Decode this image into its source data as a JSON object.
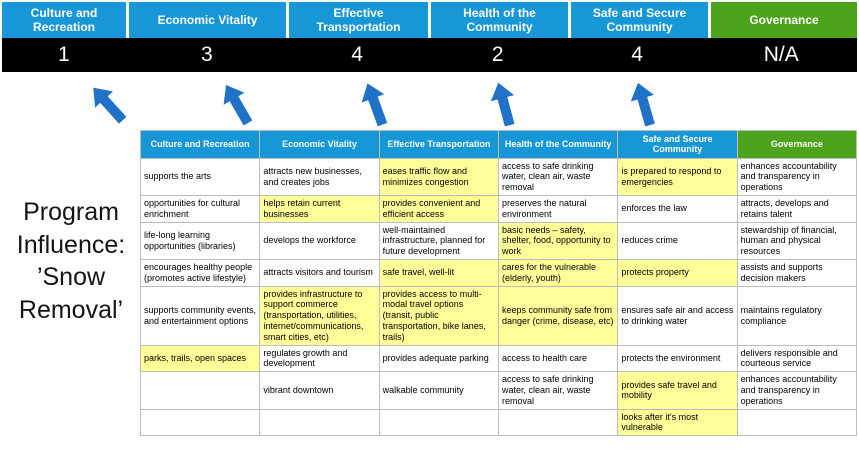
{
  "program": {
    "title": "Program Influence: ’Snow Removal’"
  },
  "columns": [
    {
      "label": "Culture and Recreation",
      "score": "1"
    },
    {
      "label": "Economic Vitality",
      "score": "3"
    },
    {
      "label": "Effective Transportation",
      "score": "4"
    },
    {
      "label": "Health of the Community",
      "score": "2"
    },
    {
      "label": "Safe and Secure Community",
      "score": "4"
    },
    {
      "label": "Governance",
      "score": "N/A"
    }
  ],
  "table": {
    "rows": [
      [
        {
          "text": "supports the arts"
        },
        {
          "text": "attracts new businesses, and creates jobs"
        },
        {
          "text": "eases traffic flow and minimizes congestion",
          "hl": true
        },
        {
          "text": "access to safe drinking water, clean air, waste removal"
        },
        {
          "text": "is prepared to respond to emergencies",
          "hl": true
        },
        {
          "text": "enhances accountability and transparency in operations"
        }
      ],
      [
        {
          "text": "opportunities for cultural enrichment"
        },
        {
          "text": "helps retain current businesses",
          "hl": true
        },
        {
          "text": "provides convenient and efficient access",
          "hl": true
        },
        {
          "text": "preserves the natural environment"
        },
        {
          "text": "enforces the law"
        },
        {
          "text": "attracts, develops and retains talent"
        }
      ],
      [
        {
          "text": "life-long learning opportunities (libraries)"
        },
        {
          "text": "develops the workforce"
        },
        {
          "text": "well-maintained infrastructure, planned for future development"
        },
        {
          "text": "basic needs – safety, shelter, food, opportunity to work",
          "hl": true
        },
        {
          "text": "reduces crime"
        },
        {
          "text": "stewardship of financial, human and physical resources"
        }
      ],
      [
        {
          "text": "encourages healthy people (promotes active lifestyle)"
        },
        {
          "text": "attracts visitors and tourism"
        },
        {
          "text": "safe travel, well-lit",
          "hl": true
        },
        {
          "text": "cares for the vulnerable (elderly, youth)",
          "hl": true
        },
        {
          "text": "protects property",
          "hl": true
        },
        {
          "text": "assists and supports decision makers"
        }
      ],
      [
        {
          "text": "supports community events, and entertainment options"
        },
        {
          "text": "provides infrastructure to support commerce (transportation, utilities, internet/communications, smart cities, etc)",
          "hl": true
        },
        {
          "text": "provides access to multi-modal travel options (transit, public transportation, bike lanes, trails)",
          "hl": true
        },
        {
          "text": "keeps community safe from danger (crime, disease, etc)",
          "hl": true
        },
        {
          "text": "ensures safe air and access to drinking water"
        },
        {
          "text": "maintains regulatory compliance"
        }
      ],
      [
        {
          "text": "parks, trails, open spaces",
          "hl": true
        },
        {
          "text": "regulates growth and development"
        },
        {
          "text": "provides adequate parking"
        },
        {
          "text": "access to health care"
        },
        {
          "text": "protects the environment"
        },
        {
          "text": "delivers responsible and courteous service"
        }
      ],
      [
        {
          "text": ""
        },
        {
          "text": "vibrant downtown"
        },
        {
          "text": "walkable community"
        },
        {
          "text": "access to safe drinking water, clean air, waste removal"
        },
        {
          "text": "provides safe travel and mobility",
          "hl": true
        },
        {
          "text": "enhances accountability and transparency in operations"
        }
      ],
      [
        {
          "text": ""
        },
        {
          "text": ""
        },
        {
          "text": ""
        },
        {
          "text": ""
        },
        {
          "text": "looks after it's most vulnerable",
          "hl": true
        },
        {
          "text": ""
        }
      ]
    ]
  },
  "colors": {
    "header_blue": "#1797d5",
    "header_green": "#4ea31c",
    "score_band_bg": "#000000",
    "highlight_yellow": "#ffff99",
    "arrow_blue": "#1f72c8",
    "grid_border": "#bdbdbd"
  }
}
